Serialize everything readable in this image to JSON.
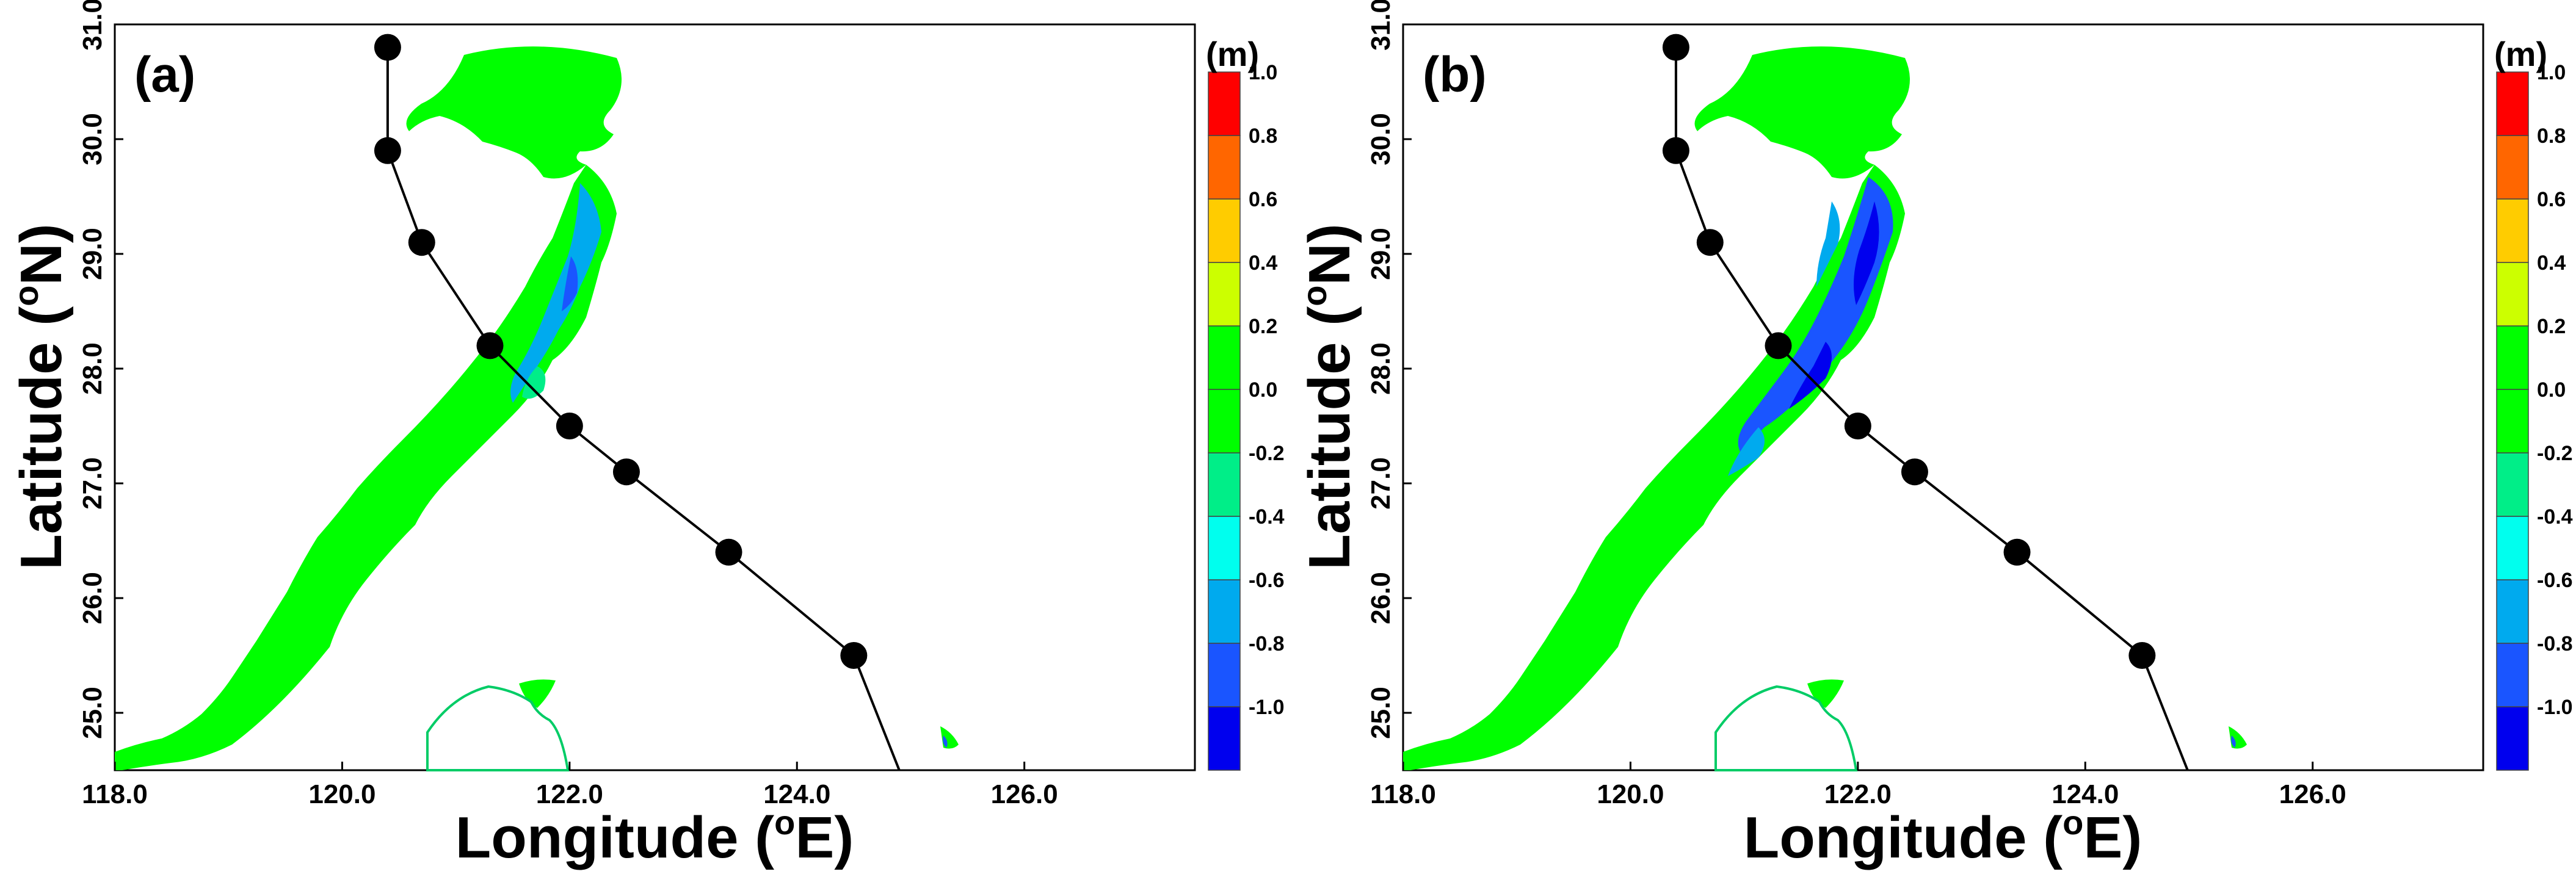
{
  "chart_data": {
    "type": "map",
    "units": "(m)",
    "xlabel": "Longitude",
    "xunit": "E",
    "ylabel": "Latitude",
    "yunit": "N",
    "degree_symbol": "o",
    "xlim": [
      118.0,
      127.5
    ],
    "ylim": [
      24.5,
      31.0
    ],
    "xticks": [
      118.0,
      120.0,
      122.0,
      124.0,
      126.0
    ],
    "xtick_labels": [
      "118.0",
      "120.0",
      "122.0",
      "124.0",
      "126.0"
    ],
    "yticks": [
      25.0,
      26.0,
      27.0,
      28.0,
      29.0,
      30.0,
      31.0
    ],
    "ytick_labels": [
      "25.0",
      "26.0",
      "27.0",
      "28.0",
      "29.0",
      "30.0",
      "31.0"
    ],
    "colorbar": {
      "colors": [
        "#0000ee",
        "#1a55ff",
        "#00aaee",
        "#00ffee",
        "#00ee88",
        "#00ff00",
        "#00ff00",
        "#ccff00",
        "#ffcc00",
        "#ff6600",
        "#ff0000"
      ],
      "labels": [
        "-1.0",
        "-0.8",
        "-0.6",
        "-0.4",
        "-0.2",
        "0.0",
        "0.2",
        "0.4",
        "0.6",
        "0.8",
        "1.0"
      ]
    },
    "typhoon_track": {
      "lon": [
        120.4,
        120.4,
        120.7,
        121.3,
        122.0,
        122.5,
        123.4,
        124.5,
        124.9
      ],
      "lat": [
        30.8,
        29.9,
        29.1,
        28.2,
        27.5,
        27.1,
        26.4,
        25.5,
        24.5
      ],
      "marker_count": 8
    },
    "panels": [
      {
        "label": "(a)",
        "blue_intensity": "weak"
      },
      {
        "label": "(b)",
        "blue_intensity": "strong"
      }
    ]
  }
}
